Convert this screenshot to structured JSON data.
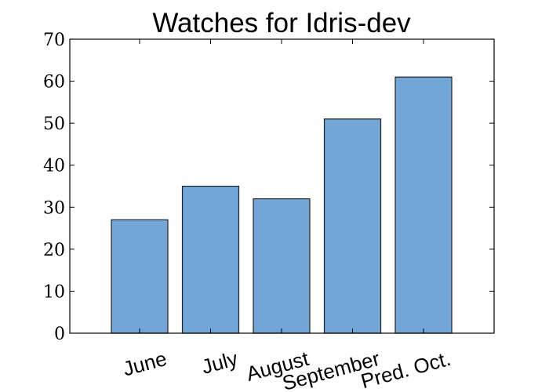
{
  "chart_data": {
    "type": "bar",
    "title": "Watches for Idris-dev",
    "xlabel": "",
    "ylabel": "",
    "categories": [
      "June",
      "July",
      "August",
      "September",
      "Pred. Oct."
    ],
    "values": [
      27,
      35,
      32,
      51,
      61
    ],
    "ylim": [
      0,
      70
    ],
    "yticks": [
      0,
      10,
      20,
      30,
      40,
      50,
      60,
      70
    ],
    "bar_color": "#72a6d6",
    "edge_color": "#222222",
    "grid": false,
    "legend": "none"
  }
}
